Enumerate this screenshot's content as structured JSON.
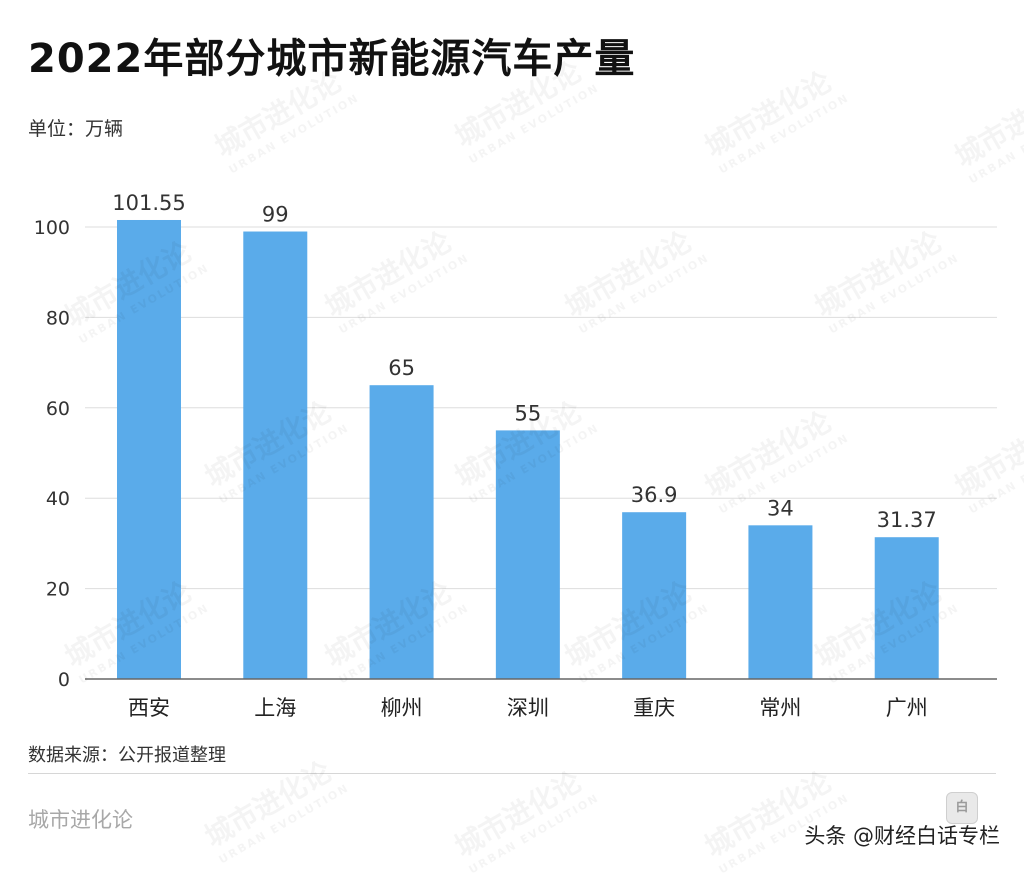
{
  "title": "2022年部分城市新能源汽车产量",
  "unit_label": "单位：万辆",
  "source_label": "数据来源：公开报道整理",
  "brand_label": "城市进化论",
  "credit_label": "头条 @财经白话专栏",
  "watermark": {
    "cn": "城市进化论",
    "en": "URBAN EVOLUTION"
  },
  "colors": {
    "bar": "#5aabea",
    "grid": "#dddddd",
    "axis": "#666666",
    "text": "#333333"
  },
  "chart_data": {
    "type": "bar",
    "categories": [
      "西安",
      "上海",
      "柳州",
      "深圳",
      "重庆",
      "常州",
      "广州"
    ],
    "values": [
      101.55,
      99,
      65,
      55,
      36.9,
      34,
      31.37
    ],
    "value_labels": [
      "101.55",
      "99",
      "65",
      "55",
      "36.9",
      "34",
      "31.37"
    ],
    "title": "2022年部分城市新能源汽车产量",
    "xlabel": "",
    "ylabel": "",
    "ylim": [
      0,
      100
    ],
    "yticks": [
      0,
      20,
      40,
      60,
      80,
      100
    ],
    "grid": true,
    "legend": "none"
  }
}
